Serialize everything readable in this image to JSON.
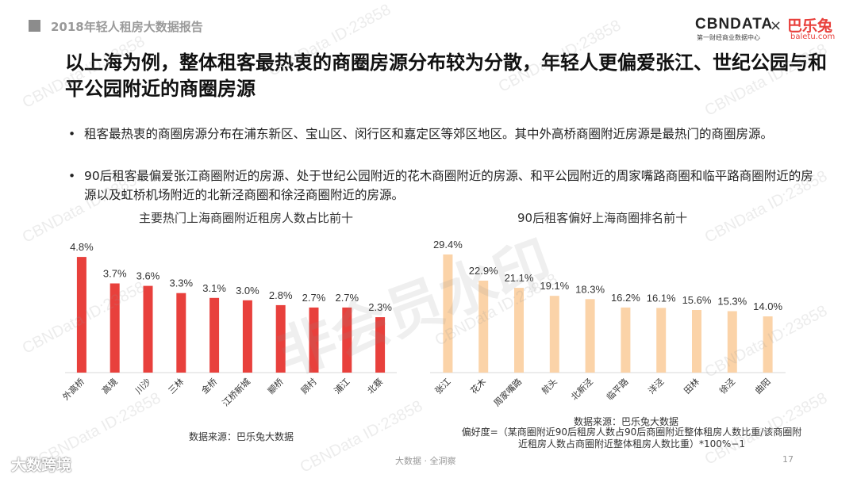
{
  "header": {
    "report_title": "2018年轻人租房大数据报告"
  },
  "logos": {
    "cbn": "CBNDATA",
    "cbn_sub": "第一财经商业数据中心",
    "times": "×",
    "baletu": "巴乐兔",
    "baletu_sub": "baletu.com"
  },
  "main_title": "以上海为例，整体租客最热衷的商圈房源分布较为分散，年轻人更偏爱张江、世纪公园与和平公园附近的商圈房源",
  "bullets": [
    "租客最热衷的商圈房源分布在浦东新区、宝山区、闵行区和嘉定区等郊区地区。其中外高桥商圈附近房源是最热门的商圈房源。",
    "90后租客最偏爱张江商圈附近的房源、处于世纪公园附近的花木商圈附近的房源、和平公园附近的周家嘴路商圈和临平路商圈附近的房源以及虹桥机场附近的北新泾商圈和徐泾商圈附近的房源。"
  ],
  "bullet_symbol": "•",
  "chart_data": [
    {
      "type": "bar",
      "title": "主要热门上海商圈附近租房人数占比前十",
      "categories": [
        "外高桥",
        "高境",
        "川沙",
        "三林",
        "金桥",
        "江桥新城",
        "颛桥",
        "顾村",
        "浦江",
        "北蔡"
      ],
      "values": [
        4.8,
        3.7,
        3.6,
        3.3,
        3.1,
        3.0,
        2.8,
        2.7,
        2.7,
        2.3
      ],
      "value_labels": [
        "4.8%",
        "3.7%",
        "3.6%",
        "3.3%",
        "3.1%",
        "3.0%",
        "2.8%",
        "2.7%",
        "2.7%",
        "2.3%"
      ],
      "color": "#e8403c",
      "ylim": [
        0,
        5
      ],
      "source": "数据来源：巴乐兔大数据"
    },
    {
      "type": "bar",
      "title": "90后租客偏好上海商圈排名前十",
      "categories": [
        "张江",
        "花木",
        "周家嘴路",
        "航头",
        "北新泾",
        "临平路",
        "洋泾",
        "田林",
        "徐泾",
        "曲阳"
      ],
      "values": [
        29.4,
        22.9,
        21.1,
        19.1,
        18.3,
        16.2,
        16.1,
        15.6,
        15.3,
        14.0
      ],
      "value_labels": [
        "29.4%",
        "22.9%",
        "21.1%",
        "19.1%",
        "18.3%",
        "16.2%",
        "16.1%",
        "15.6%",
        "15.3%",
        "14.0%"
      ],
      "color": "#fbd3a8",
      "ylim": [
        0,
        30
      ],
      "source": "数据来源：巴乐兔大数据",
      "formula": "偏好度=（某商圈附近90后租房人数占90后商圈附近整体租房人数比重/该商圈附近租房人数占商圈附近整体租房人数比重）*100%−1"
    }
  ],
  "footer": {
    "text": "大数据 · 全洞察",
    "page": "17",
    "corner_logo": "大数跨境"
  },
  "watermarks": {
    "small": "CBNData ID:23858",
    "big": "非会员水印"
  }
}
